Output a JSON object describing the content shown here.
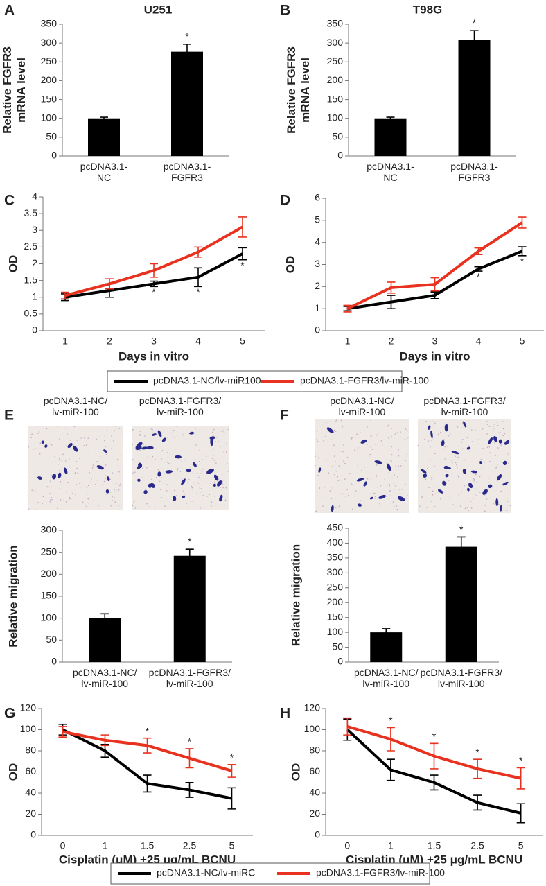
{
  "chart_data": [
    {
      "type": "bar",
      "panel": "A",
      "title": "U251",
      "ylabel": "Relative FGFR3\nmRNA level",
      "categories": [
        "pcDNA3.1-\nNC",
        "pcDNA3.1-\nFGFR3"
      ],
      "values": [
        100,
        277
      ],
      "errors": [
        3,
        20
      ],
      "markers": [
        null,
        "*"
      ],
      "ylim": [
        0,
        350
      ],
      "yticks": [
        0,
        50,
        100,
        150,
        200,
        250,
        300,
        350
      ]
    },
    {
      "type": "bar",
      "panel": "B",
      "title": "T98G",
      "ylabel": "Relative FGFR3\nmRNA level",
      "categories": [
        "pcDNA3.1-\nNC",
        "pcDNA3.1-\nFGFR3"
      ],
      "values": [
        100,
        308
      ],
      "errors": [
        3,
        25
      ],
      "markers": [
        null,
        "*"
      ],
      "ylim": [
        0,
        350
      ],
      "yticks": [
        0,
        50,
        100,
        150,
        200,
        250,
        300,
        350
      ]
    },
    {
      "type": "line",
      "panel": "C",
      "ylabel": "OD",
      "xlabel": "Days in vitro",
      "categories": [
        "1",
        "2",
        "3",
        "4",
        "5"
      ],
      "series": [
        {
          "name": "pcDNA3.1-NC/lv-miR100",
          "color": "#000000",
          "values": [
            1.0,
            1.2,
            1.4,
            1.6,
            2.3
          ],
          "errors": [
            0.1,
            0.2,
            0.08,
            0.28,
            0.18
          ]
        },
        {
          "name": "pcDNA3.1-FGFR3/lv-miR-100",
          "color": "#e8321f",
          "values": [
            1.05,
            1.4,
            1.8,
            2.35,
            3.1
          ],
          "errors": [
            0.1,
            0.15,
            0.2,
            0.15,
            0.3
          ]
        }
      ],
      "markers": [
        null,
        null,
        "*",
        "*",
        "*"
      ],
      "ylim": [
        0,
        4
      ],
      "yticks": [
        0,
        0.5,
        1,
        1.5,
        2,
        2.5,
        3,
        3.5,
        4
      ]
    },
    {
      "type": "line",
      "panel": "D",
      "ylabel": "OD",
      "xlabel": "Days in vitro",
      "categories": [
        "1",
        "2",
        "3",
        "4",
        "5"
      ],
      "series": [
        {
          "color": "#000000",
          "values": [
            1.0,
            1.3,
            1.6,
            2.8,
            3.6
          ],
          "errors": [
            0.1,
            0.3,
            0.15,
            0.1,
            0.2
          ]
        },
        {
          "color": "#e8321f",
          "values": [
            1.0,
            1.95,
            2.1,
            3.6,
            4.9
          ],
          "errors": [
            0.15,
            0.25,
            0.3,
            0.15,
            0.25
          ]
        }
      ],
      "markers": [
        null,
        null,
        null,
        "*",
        "*"
      ],
      "ylim": [
        0,
        6
      ],
      "yticks": [
        0,
        1,
        2,
        3,
        4,
        5,
        6
      ]
    },
    {
      "type": "bar",
      "panel": "E",
      "ylabel": "Relative migration",
      "image_labels": [
        "pcDNA3.1-NC/\nlv-miR-100",
        "pcDNA3.1-FGFR3/\nlv-miR-100"
      ],
      "categories": [
        "pcDNA3.1-NC/\nlv-miR-100",
        "pcDNA3.1-FGFR3/\nlv-miR-100"
      ],
      "values": [
        100,
        242
      ],
      "errors": [
        10,
        15
      ],
      "markers": [
        null,
        "*"
      ],
      "ylim": [
        0,
        300
      ],
      "yticks": [
        0,
        50,
        100,
        150,
        200,
        250,
        300
      ]
    },
    {
      "type": "bar",
      "panel": "F",
      "ylabel": "Relative migration",
      "image_labels": [
        "pcDNA3.1-NC/\nlv-miR-100",
        "pcDNA3.1-FGFR3/\nlv-miR-100"
      ],
      "categories": [
        "pcDNA3.1-NC/\nlv-miR-100",
        "pcDNA3.1-FGFR3/\nlv-miR-100"
      ],
      "values": [
        100,
        388
      ],
      "errors": [
        12,
        33
      ],
      "markers": [
        null,
        "*"
      ],
      "ylim": [
        0,
        450
      ],
      "yticks": [
        0,
        50,
        100,
        150,
        200,
        250,
        300,
        350,
        400,
        450
      ]
    },
    {
      "type": "line",
      "panel": "G",
      "ylabel": "OD",
      "xlabel": "Cisplatin (μM) +25 μg/mL BCNU",
      "categories": [
        "0",
        "1",
        "1.5",
        "2.5",
        "5"
      ],
      "series": [
        {
          "name": "pcDNA3.1-NC/lv-miRC",
          "color": "#000000",
          "values": [
            100,
            80,
            49,
            43,
            35
          ],
          "errors": [
            5,
            6,
            8,
            7,
            10
          ]
        },
        {
          "name": "pcDNA3.1-FGFR3/lv-miR-100",
          "color": "#e8321f",
          "values": [
            98,
            90,
            85,
            73,
            61
          ],
          "errors": [
            5,
            5,
            7,
            9,
            6
          ]
        }
      ],
      "markers": [
        null,
        null,
        "*",
        "*",
        "*"
      ],
      "ylim": [
        0,
        120
      ],
      "yticks": [
        0,
        20,
        40,
        60,
        80,
        100,
        120
      ]
    },
    {
      "type": "line",
      "panel": "H",
      "ylabel": "OD",
      "xlabel": "Cisplatin (μM) +25 μg/mL BCNU",
      "categories": [
        "0",
        "1",
        "1.5",
        "2.5",
        "5"
      ],
      "series": [
        {
          "color": "#000000",
          "values": [
            100,
            62,
            50,
            31,
            21
          ],
          "errors": [
            10,
            10,
            7,
            7,
            9
          ]
        },
        {
          "color": "#e8321f",
          "values": [
            103,
            91,
            75,
            63,
            54
          ],
          "errors": [
            8,
            11,
            12,
            9,
            10
          ]
        }
      ],
      "markers": [
        null,
        "*",
        "*",
        "*",
        "*"
      ],
      "ylim": [
        0,
        120
      ],
      "yticks": [
        0,
        20,
        40,
        60,
        80,
        100,
        120
      ]
    }
  ]
}
